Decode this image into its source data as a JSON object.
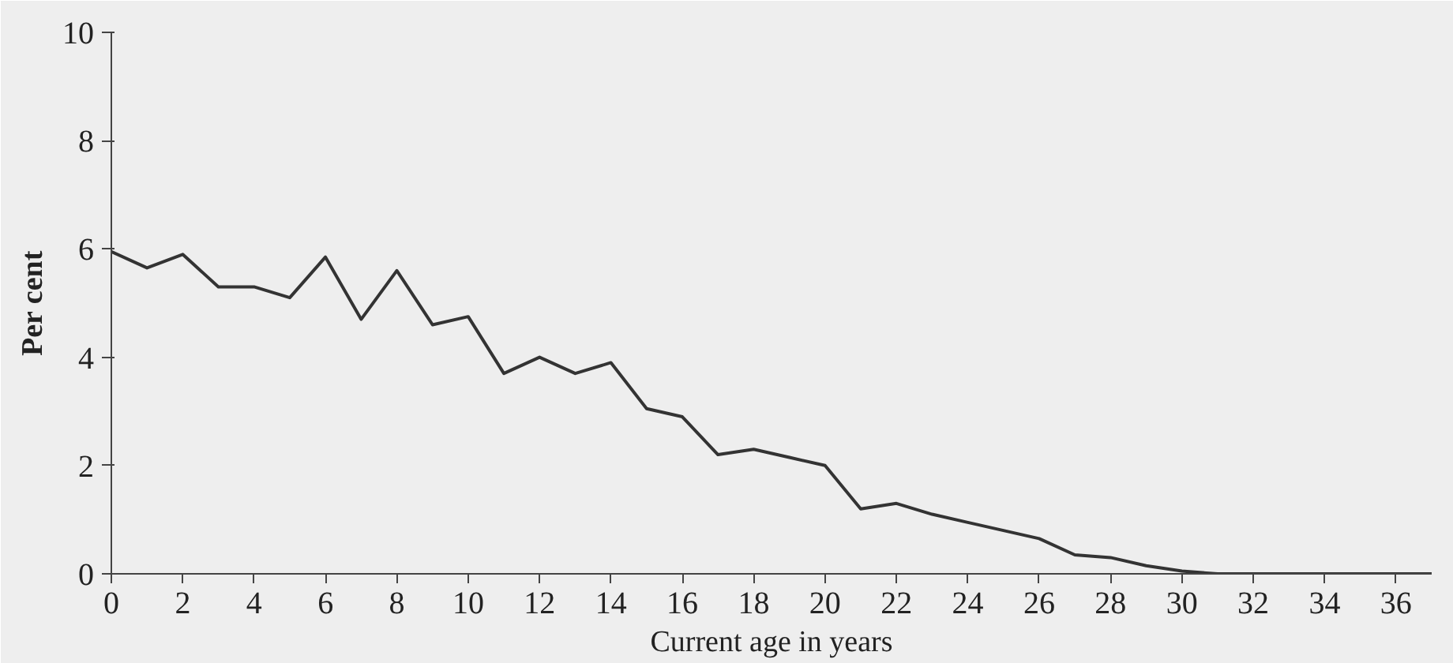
{
  "chart_data": {
    "type": "line",
    "xlabel": "Current age in years",
    "ylabel": "Per cent",
    "x": [
      0,
      1,
      2,
      3,
      4,
      5,
      6,
      7,
      8,
      9,
      10,
      11,
      12,
      13,
      14,
      15,
      16,
      17,
      18,
      19,
      20,
      21,
      22,
      23,
      24,
      25,
      26,
      27,
      28,
      29,
      30,
      31,
      32,
      33,
      34,
      35,
      36,
      37
    ],
    "series": [
      {
        "color": "#333333",
        "values": [
          5.95,
          5.65,
          5.9,
          5.3,
          5.3,
          5.1,
          5.85,
          4.7,
          5.6,
          4.6,
          4.75,
          3.7,
          4.0,
          3.7,
          3.9,
          3.05,
          2.9,
          2.2,
          2.3,
          2.15,
          2.0,
          1.2,
          1.3,
          1.1,
          0.95,
          0.8,
          0.65,
          0.35,
          0.3,
          0.15,
          0.05,
          0.0,
          0.0,
          0.0,
          0.0,
          0.0,
          0.0,
          0.0
        ]
      }
    ],
    "xlim": [
      0,
      37
    ],
    "ylim": [
      0,
      10
    ],
    "xticks": [
      0,
      2,
      4,
      6,
      8,
      10,
      12,
      14,
      16,
      18,
      20,
      22,
      24,
      26,
      28,
      30,
      32,
      34,
      36
    ],
    "yticks": [
      0,
      2,
      4,
      6,
      8,
      10
    ],
    "grid": false,
    "marker": "none",
    "line_style": "solid"
  }
}
